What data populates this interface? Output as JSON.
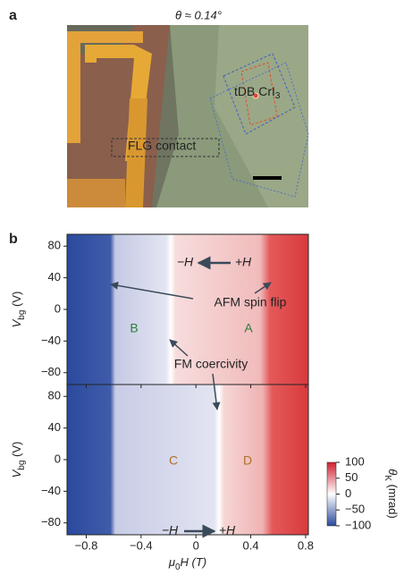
{
  "panel_a": {
    "letter": "a",
    "title": "θ ≈ 0.14°",
    "sample_label": {
      "text": "tDB CrI",
      "sub": "3"
    },
    "contact_label": "FLG contact"
  },
  "panel_b": {
    "letter": "b",
    "ylim": [
      -95,
      95
    ],
    "yticks": [
      80,
      40,
      0,
      {
        "value": -40,
        "label": "−40"
      },
      {
        "value": -80,
        "label": "−80"
      }
    ],
    "xlim": [
      -0.94,
      0.82
    ],
    "xticks": [
      {
        "value": -0.8,
        "label": "−0.8"
      },
      {
        "value": -0.4,
        "label": "−0.4"
      },
      0,
      0.4,
      0.8
    ],
    "ylabel": {
      "text": "V",
      "sub": "bg",
      "unit": " (V)"
    },
    "xlabel": {
      "text": "μ",
      "sub": "0",
      "rest": "H (T)"
    },
    "top": {
      "minus_h": "−H",
      "plus_h": "+H",
      "afm": "AFM spin flip",
      "fm": "FM coercivity",
      "left_region": "B",
      "right_region": "A"
    },
    "bottom": {
      "minus_h": "−H",
      "plus_h": "+H",
      "left_region": "C",
      "right_region": "D"
    },
    "colorbar": {
      "lim": [
        -100,
        100
      ],
      "ticks": [
        100,
        50,
        0,
        {
          "value": -50,
          "label": "−50"
        },
        {
          "value": -100,
          "label": "−100"
        }
      ],
      "label": {
        "text": "θ",
        "sub": "K",
        "unit": " (mrad)"
      }
    }
  }
}
